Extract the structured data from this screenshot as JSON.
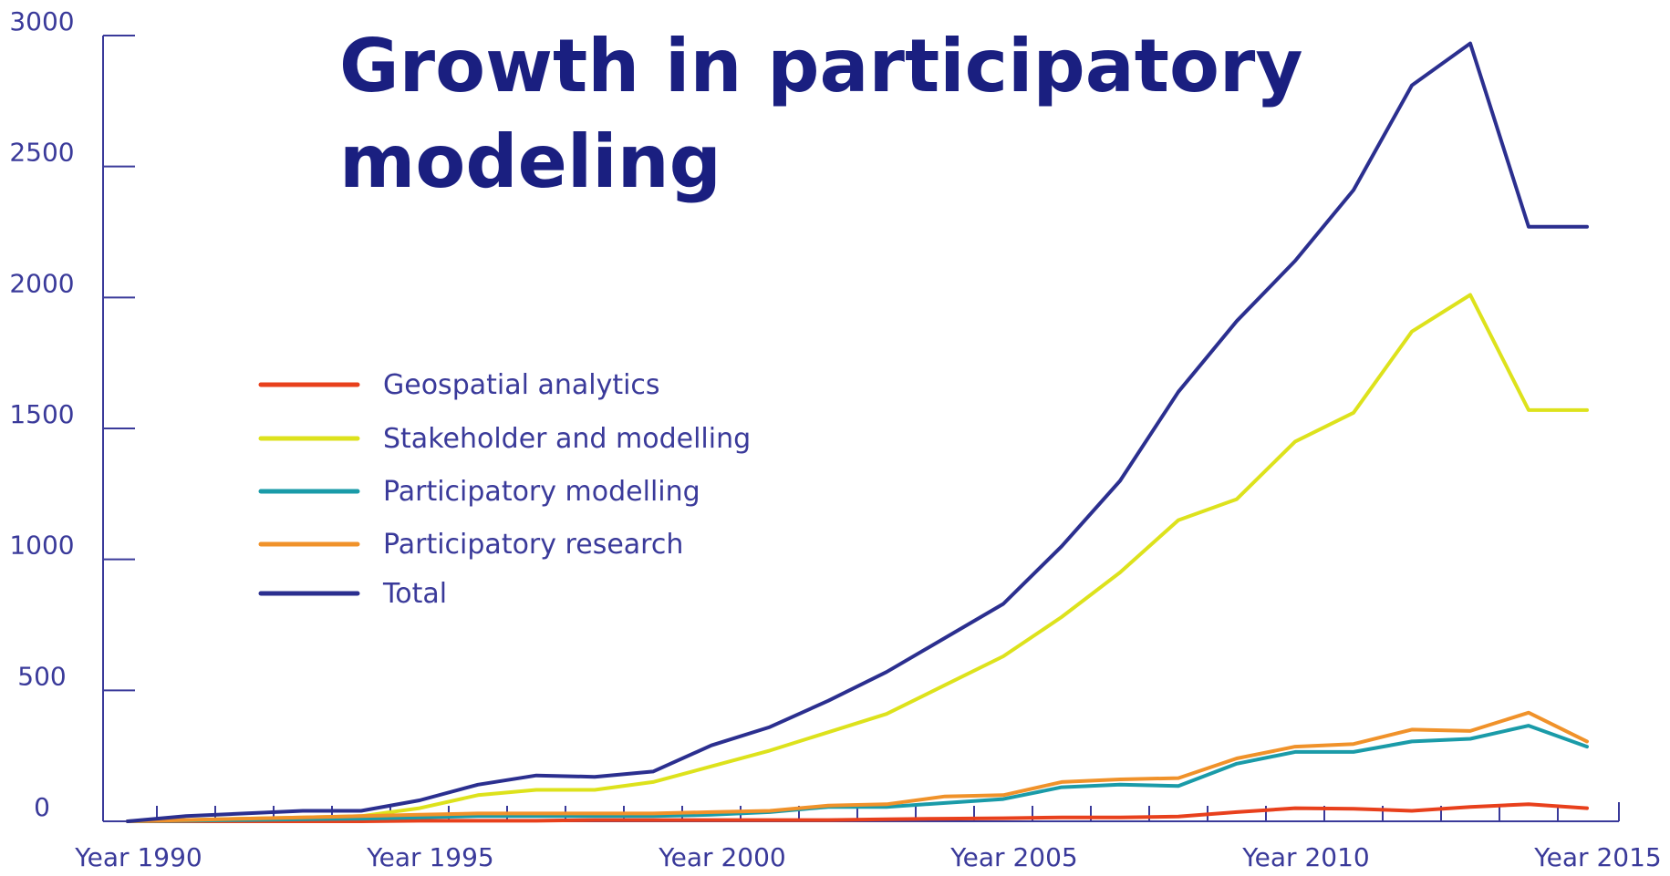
{
  "chart_data": {
    "type": "line",
    "title_lines": [
      "Growth in participatory",
      "modeling"
    ],
    "xlabel": "",
    "ylabel": "",
    "x": [
      1990,
      1991,
      1992,
      1993,
      1994,
      1995,
      1996,
      1997,
      1998,
      1999,
      2000,
      2001,
      2002,
      2003,
      2004,
      2005,
      2006,
      2007,
      2008,
      2009,
      2010,
      2011,
      2012,
      2013,
      2014,
      2015
    ],
    "xlim": [
      1990,
      2015
    ],
    "ylim": [
      0,
      3000
    ],
    "x_tick_labels": [
      {
        "value": 1990,
        "label": "Year 1990"
      },
      {
        "value": 1995,
        "label": "Year 1995"
      },
      {
        "value": 2000,
        "label": "Year 2000"
      },
      {
        "value": 2005,
        "label": "Year 2005"
      },
      {
        "value": 2010,
        "label": "Year 2010"
      },
      {
        "value": 2015,
        "label": "Year 2015"
      }
    ],
    "y_tick_labels": [
      {
        "value": 0,
        "label": "0"
      },
      {
        "value": 500,
        "label": "500"
      },
      {
        "value": 1000,
        "label": "1000"
      },
      {
        "value": 1500,
        "label": "1500"
      },
      {
        "value": 2000,
        "label": "2000"
      },
      {
        "value": 2500,
        "label": "2500"
      },
      {
        "value": 3000,
        "label": "3000"
      }
    ],
    "grid": false,
    "legend_position": "center-left",
    "series": [
      {
        "name": "Geospatial analytics",
        "color": "#e8401c",
        "values": [
          0,
          0,
          0,
          0,
          0,
          2,
          2,
          2,
          5,
          5,
          5,
          5,
          5,
          8,
          10,
          12,
          15,
          15,
          18,
          35,
          50,
          48,
          40,
          55,
          65,
          50
        ]
      },
      {
        "name": "Stakeholder and modelling",
        "color": "#dde21c",
        "values": [
          0,
          5,
          10,
          15,
          20,
          50,
          100,
          120,
          120,
          150,
          210,
          270,
          340,
          410,
          520,
          630,
          780,
          950,
          1150,
          1230,
          1450,
          1560,
          1870,
          2010,
          1570,
          1570
        ]
      },
      {
        "name": "Participatory modelling",
        "color": "#1a9ba8",
        "values": [
          0,
          2,
          5,
          8,
          10,
          15,
          20,
          20,
          20,
          20,
          25,
          35,
          55,
          55,
          70,
          85,
          130,
          140,
          135,
          220,
          265,
          265,
          305,
          315,
          365,
          285
        ]
      },
      {
        "name": "Participatory research",
        "color": "#f0922a",
        "values": [
          0,
          5,
          10,
          15,
          20,
          25,
          30,
          30,
          30,
          30,
          35,
          40,
          60,
          65,
          95,
          100,
          150,
          160,
          165,
          240,
          285,
          295,
          350,
          345,
          415,
          305
        ]
      },
      {
        "name": "Total",
        "color": "#2b2f8f",
        "values": [
          0,
          20,
          30,
          40,
          40,
          80,
          140,
          175,
          170,
          190,
          290,
          360,
          460,
          570,
          700,
          830,
          1050,
          1300,
          1640,
          1910,
          2140,
          2410,
          2810,
          2970,
          2270,
          2270
        ]
      }
    ]
  }
}
